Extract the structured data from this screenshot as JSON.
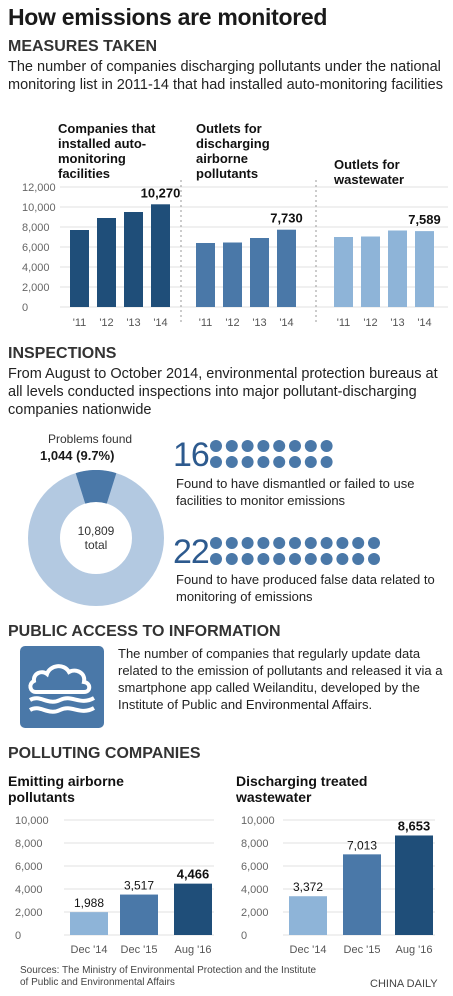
{
  "title": "How emissions are monitored",
  "measures": {
    "heading": "MEASURES TAKEN",
    "description": "The number of companies discharging pollutants under the national monitoring list in 2011-14 that had installed auto-monitoring facilities",
    "groups": [
      {
        "label": "Companies that installed auto-monitoring facilities",
        "color": "#1f4e79",
        "highlight": "10,270"
      },
      {
        "label": "Outlets for discharging airborne pollutants",
        "color": "#4a78a8",
        "highlight": "7,730"
      },
      {
        "label": "Outlets for wastewater",
        "color": "#8eb4d8",
        "highlight": "7,589"
      }
    ]
  },
  "chart_data": [
    {
      "type": "bar",
      "categories": [
        "'11",
        "'12",
        "'13",
        "'14"
      ],
      "series": [
        {
          "name": "Companies that installed auto-monitoring facilities",
          "values": [
            7700,
            8900,
            9500,
            10270
          ]
        },
        {
          "name": "Outlets for discharging airborne pollutants",
          "values": [
            6400,
            6450,
            6900,
            7730
          ]
        },
        {
          "name": "Outlets for wastewater",
          "values": [
            7000,
            7050,
            7650,
            7589
          ]
        }
      ],
      "yticks": [
        "12,000",
        "10,000",
        "8,000",
        "6,000",
        "4,000",
        "2,000",
        "0"
      ],
      "ylim": [
        0,
        12000
      ]
    },
    {
      "type": "pie",
      "values": [
        1044,
        9765
      ],
      "labels": [
        "Problems found",
        "Other"
      ],
      "total": 10809
    },
    {
      "type": "bar",
      "title": "Emitting airborne pollutants",
      "categories": [
        "Dec '14",
        "Dec '15",
        "Aug '16"
      ],
      "values": [
        1988,
        3517,
        4466
      ],
      "ylim": [
        0,
        10000
      ]
    },
    {
      "type": "bar",
      "title": "Discharging treated wastewater",
      "categories": [
        "Dec '14",
        "Dec '15",
        "Aug '16"
      ],
      "values": [
        3372,
        7013,
        8653
      ],
      "ylim": [
        0,
        10000
      ]
    }
  ],
  "inspections": {
    "heading": "INSPECTIONS",
    "description": "From August to October 2014, environmental protection bureaus at all levels conducted inspections into major pollutant-discharging companies nationwide",
    "problems_label": "Problems found",
    "problems_value": "1,044 (9.7%)",
    "total_value": "10,809",
    "total_label": "total",
    "donut_colors": {
      "problem": "#4a78a8",
      "rest": "#b3c9e1"
    },
    "stats": [
      {
        "number": "16",
        "dots": 16,
        "text": "Found to have dismantled or failed to use facilities to monitor emissions"
      },
      {
        "number": "22",
        "dots": 22,
        "text": "Found to have produced false data related to monitoring of emissions"
      }
    ]
  },
  "public": {
    "heading": "PUBLIC ACCESS TO INFORMATION",
    "icon": "cloud-wave-icon",
    "text": "The number of companies that regularly update data related to the emission of pollutants and released it via a smartphone app called Weilanditu, developed by the Institute of Public and Environmental Affairs."
  },
  "polluting": {
    "heading": "POLLUTING COMPANIES",
    "airborne_title": "Emitting airborne pollutants",
    "water_title": "Discharging treated wastewater",
    "yticks": [
      "10,000",
      "8,000",
      "6,000",
      "4,000",
      "2,000",
      "0"
    ],
    "value_labels_air": [
      "1,988",
      "3,517",
      "4,466"
    ],
    "value_labels_water": [
      "3,372",
      "7,013",
      "8,653"
    ]
  },
  "footer": {
    "sources": "Sources: The Ministry of Environmental Protection and the Institute of Public and Environmental Affairs",
    "credit": "CHINA DAILY"
  }
}
